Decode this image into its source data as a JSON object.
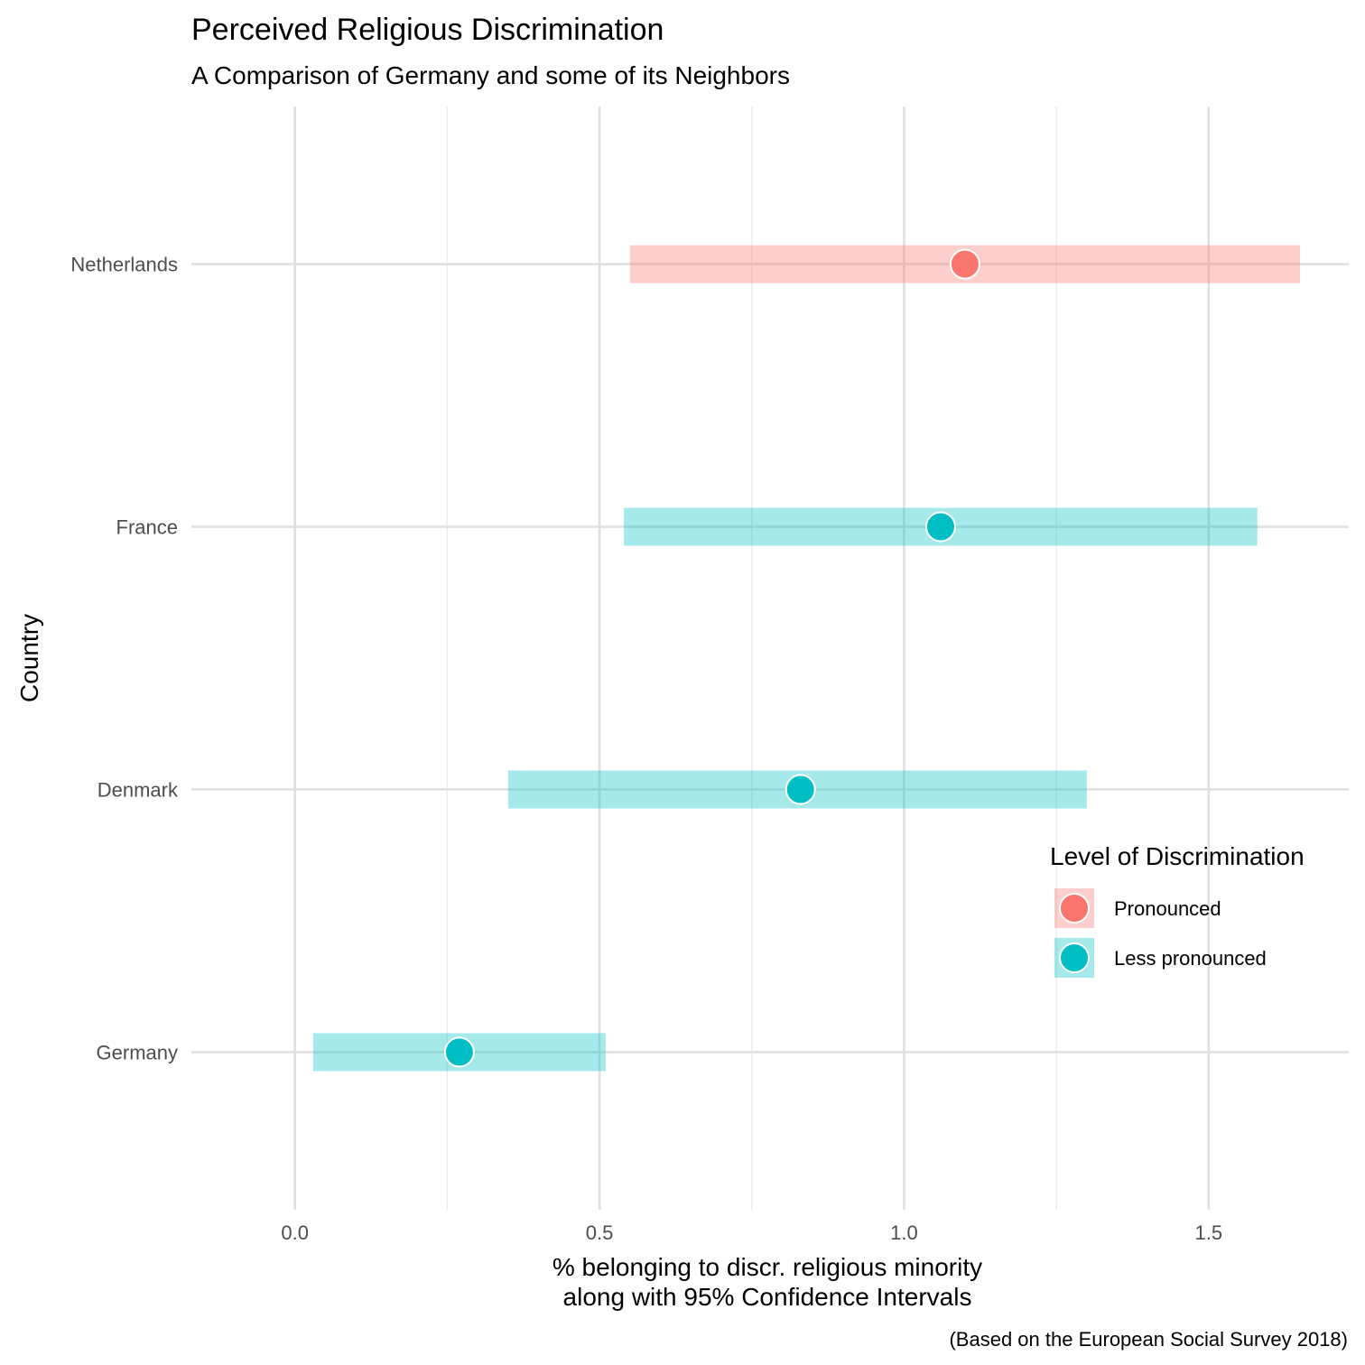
{
  "chart_data": {
    "type": "scatter",
    "title": "Perceived Religious Discrimination",
    "subtitle": "A Comparison of Germany and some of its Neighbors",
    "xlabel_lines": [
      "% belonging to discr. religious minority",
      "along with 95% Confidence Intervals"
    ],
    "ylabel": "Country",
    "caption": "(Based on the European Social Survey 2018)",
    "xlim": [
      -0.17,
      1.73
    ],
    "x_ticks": [
      0.0,
      0.5,
      1.0,
      1.5
    ],
    "x_tick_labels": [
      "0.0",
      "0.5",
      "1.0",
      "1.5"
    ],
    "x_minor_ticks": [
      0.25,
      0.75,
      1.25
    ],
    "grid": true,
    "legend": {
      "title": "Level of Discrimination",
      "placement": "right",
      "entries": [
        {
          "label": "Pronounced",
          "color": "#F8766D"
        },
        {
          "label": "Less pronounced",
          "color": "#00BFC4"
        }
      ]
    },
    "categories": [
      "Netherlands",
      "France",
      "Denmark",
      "Germany"
    ],
    "points": [
      {
        "country": "Netherlands",
        "value": 1.1,
        "lower": 0.55,
        "upper": 1.65,
        "level": "Pronounced",
        "color": "#F8766D"
      },
      {
        "country": "France",
        "value": 1.06,
        "lower": 0.54,
        "upper": 1.58,
        "level": "Less pronounced",
        "color": "#00BFC4"
      },
      {
        "country": "Denmark",
        "value": 0.83,
        "lower": 0.35,
        "upper": 1.3,
        "level": "Less pronounced",
        "color": "#00BFC4"
      },
      {
        "country": "Germany",
        "value": 0.27,
        "lower": 0.03,
        "upper": 0.51,
        "level": "Less pronounced",
        "color": "#00BFC4"
      }
    ]
  }
}
